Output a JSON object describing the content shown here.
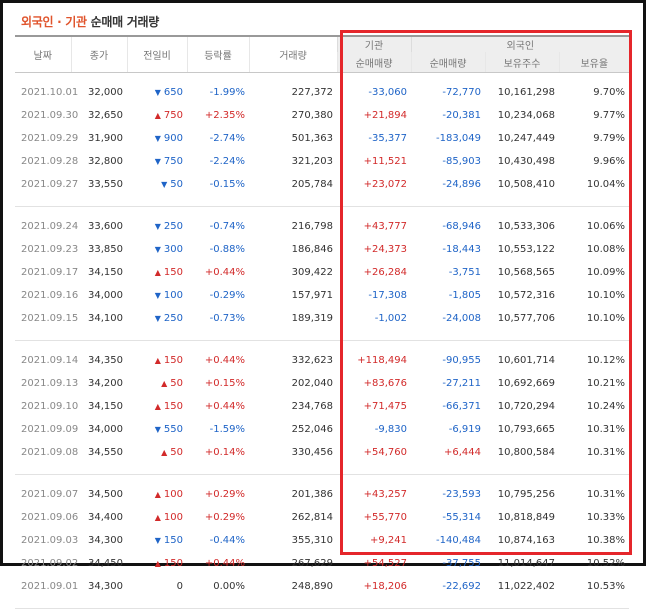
{
  "title": {
    "part1": "외국인 · 기관",
    "part2": "순매매 거래량"
  },
  "headers": {
    "date": "날짜",
    "close": "종가",
    "change": "전일비",
    "rate": "등락률",
    "volume": "거래량",
    "institution": "기관",
    "foreign": "외국인",
    "inst_net": "순매매량",
    "foreign_net": "순매매량",
    "foreign_shares": "보유주수",
    "foreign_ratio": "보유율"
  },
  "colors": {
    "up": "#d22a2a",
    "down": "#1f64c7",
    "highlight_box": "#e5262b",
    "title_accent": "#e0542c"
  },
  "groups": [
    [
      {
        "date": "2021.10.01",
        "close": "32,000",
        "dir": "down",
        "change": "650",
        "rate": "-1.99%",
        "volume": "227,372",
        "inst": "-33,060",
        "foreign_net": "-72,770",
        "shares": "10,161,298",
        "ratio": "9.70%"
      },
      {
        "date": "2021.09.30",
        "close": "32,650",
        "dir": "up",
        "change": "750",
        "rate": "+2.35%",
        "volume": "270,380",
        "inst": "+21,894",
        "foreign_net": "-20,381",
        "shares": "10,234,068",
        "ratio": "9.77%"
      },
      {
        "date": "2021.09.29",
        "close": "31,900",
        "dir": "down",
        "change": "900",
        "rate": "-2.74%",
        "volume": "501,363",
        "inst": "-35,377",
        "foreign_net": "-183,049",
        "shares": "10,247,449",
        "ratio": "9.79%"
      },
      {
        "date": "2021.09.28",
        "close": "32,800",
        "dir": "down",
        "change": "750",
        "rate": "-2.24%",
        "volume": "321,203",
        "inst": "+11,521",
        "foreign_net": "-85,903",
        "shares": "10,430,498",
        "ratio": "9.96%"
      },
      {
        "date": "2021.09.27",
        "close": "33,550",
        "dir": "down",
        "change": "50",
        "rate": "-0.15%",
        "volume": "205,784",
        "inst": "+23,072",
        "foreign_net": "-24,896",
        "shares": "10,508,410",
        "ratio": "10.04%"
      }
    ],
    [
      {
        "date": "2021.09.24",
        "close": "33,600",
        "dir": "down",
        "change": "250",
        "rate": "-0.74%",
        "volume": "216,798",
        "inst": "+43,777",
        "foreign_net": "-68,946",
        "shares": "10,533,306",
        "ratio": "10.06%"
      },
      {
        "date": "2021.09.23",
        "close": "33,850",
        "dir": "down",
        "change": "300",
        "rate": "-0.88%",
        "volume": "186,846",
        "inst": "+24,373",
        "foreign_net": "-18,443",
        "shares": "10,553,122",
        "ratio": "10.08%"
      },
      {
        "date": "2021.09.17",
        "close": "34,150",
        "dir": "up",
        "change": "150",
        "rate": "+0.44%",
        "volume": "309,422",
        "inst": "+26,284",
        "foreign_net": "-3,751",
        "shares": "10,568,565",
        "ratio": "10.09%"
      },
      {
        "date": "2021.09.16",
        "close": "34,000",
        "dir": "down",
        "change": "100",
        "rate": "-0.29%",
        "volume": "157,971",
        "inst": "-17,308",
        "foreign_net": "-1,805",
        "shares": "10,572,316",
        "ratio": "10.10%"
      },
      {
        "date": "2021.09.15",
        "close": "34,100",
        "dir": "down",
        "change": "250",
        "rate": "-0.73%",
        "volume": "189,319",
        "inst": "-1,002",
        "foreign_net": "-24,008",
        "shares": "10,577,706",
        "ratio": "10.10%"
      }
    ],
    [
      {
        "date": "2021.09.14",
        "close": "34,350",
        "dir": "up",
        "change": "150",
        "rate": "+0.44%",
        "volume": "332,623",
        "inst": "+118,494",
        "foreign_net": "-90,955",
        "shares": "10,601,714",
        "ratio": "10.12%"
      },
      {
        "date": "2021.09.13",
        "close": "34,200",
        "dir": "up",
        "change": "50",
        "rate": "+0.15%",
        "volume": "202,040",
        "inst": "+83,676",
        "foreign_net": "-27,211",
        "shares": "10,692,669",
        "ratio": "10.21%"
      },
      {
        "date": "2021.09.10",
        "close": "34,150",
        "dir": "up",
        "change": "150",
        "rate": "+0.44%",
        "volume": "234,768",
        "inst": "+71,475",
        "foreign_net": "-66,371",
        "shares": "10,720,294",
        "ratio": "10.24%"
      },
      {
        "date": "2021.09.09",
        "close": "34,000",
        "dir": "down",
        "change": "550",
        "rate": "-1.59%",
        "volume": "252,046",
        "inst": "-9,830",
        "foreign_net": "-6,919",
        "shares": "10,793,665",
        "ratio": "10.31%"
      },
      {
        "date": "2021.09.08",
        "close": "34,550",
        "dir": "up",
        "change": "50",
        "rate": "+0.14%",
        "volume": "330,456",
        "inst": "+54,760",
        "foreign_net": "+6,444",
        "shares": "10,800,584",
        "ratio": "10.31%"
      }
    ],
    [
      {
        "date": "2021.09.07",
        "close": "34,500",
        "dir": "up",
        "change": "100",
        "rate": "+0.29%",
        "volume": "201,386",
        "inst": "+43,257",
        "foreign_net": "-23,593",
        "shares": "10,795,256",
        "ratio": "10.31%"
      },
      {
        "date": "2021.09.06",
        "close": "34,400",
        "dir": "up",
        "change": "100",
        "rate": "+0.29%",
        "volume": "262,814",
        "inst": "+55,770",
        "foreign_net": "-55,314",
        "shares": "10,818,849",
        "ratio": "10.33%"
      },
      {
        "date": "2021.09.03",
        "close": "34,300",
        "dir": "down",
        "change": "150",
        "rate": "-0.44%",
        "volume": "355,310",
        "inst": "+9,241",
        "foreign_net": "-140,484",
        "shares": "10,874,163",
        "ratio": "10.38%"
      },
      {
        "date": "2021.09.02",
        "close": "34,450",
        "dir": "up",
        "change": "150",
        "rate": "+0.44%",
        "volume": "267,629",
        "inst": "+54,527",
        "foreign_net": "-37,755",
        "shares": "11,014,647",
        "ratio": "10.52%"
      },
      {
        "date": "2021.09.01",
        "close": "34,300",
        "dir": "none",
        "change": "0",
        "rate": "0.00%",
        "volume": "248,890",
        "inst": "+18,206",
        "foreign_net": "-22,692",
        "shares": "11,022,402",
        "ratio": "10.53%"
      }
    ]
  ]
}
